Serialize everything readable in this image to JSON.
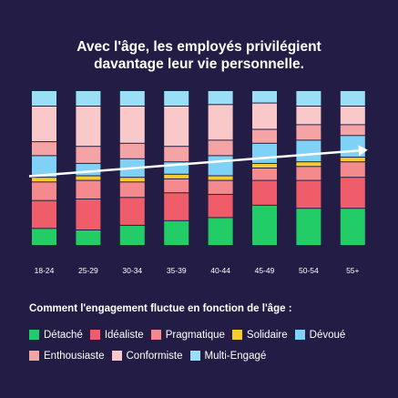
{
  "title_line1": "Avec l'âge, les employés privilégient",
  "title_line2": "davantage leur vie personnelle.",
  "legend_title": "Comment l'engagement fluctue en fonction de l'âge :",
  "chart_data": {
    "type": "bar",
    "stacked": true,
    "orientation": "vertical",
    "normalized": true,
    "categories": [
      "18-24",
      "25-29",
      "30-34",
      "35-39",
      "40-44",
      "45-49",
      "50-54",
      "55+"
    ],
    "series": [
      {
        "name": "Détaché",
        "color": "#22cc66",
        "values": [
          11,
          10,
          13,
          16,
          18,
          26,
          24,
          24
        ]
      },
      {
        "name": "Idéaliste",
        "color": "#ef5c6a",
        "values": [
          18,
          20,
          18,
          18,
          15,
          16,
          18,
          20
        ]
      },
      {
        "name": "Pragmatique",
        "color": "#f48a8e",
        "values": [
          12,
          12,
          10,
          9,
          9,
          8,
          9,
          10
        ]
      },
      {
        "name": "Solidaire",
        "color": "#f3cd2f",
        "values": [
          3,
          3,
          3,
          3,
          3,
          3,
          3,
          3
        ]
      },
      {
        "name": "Dévoué",
        "color": "#7fd2f6",
        "values": [
          14,
          8,
          12,
          8,
          13,
          13,
          14,
          14
        ]
      },
      {
        "name": "Enthousiaste",
        "color": "#f4a4a4",
        "values": [
          9,
          11,
          10,
          10,
          10,
          9,
          10,
          7
        ]
      },
      {
        "name": "Conformiste",
        "color": "#f9c8c8",
        "values": [
          23,
          26,
          24,
          26,
          23,
          17,
          12,
          12
        ]
      },
      {
        "name": "Multi-Engagé",
        "color": "#9bdff7",
        "values": [
          10,
          10,
          10,
          10,
          9,
          8,
          10,
          10
        ]
      }
    ],
    "trend_line": {
      "color": "#ffffff",
      "start_value": 45,
      "end_value": 62
    },
    "ylim": [
      0,
      100
    ]
  }
}
